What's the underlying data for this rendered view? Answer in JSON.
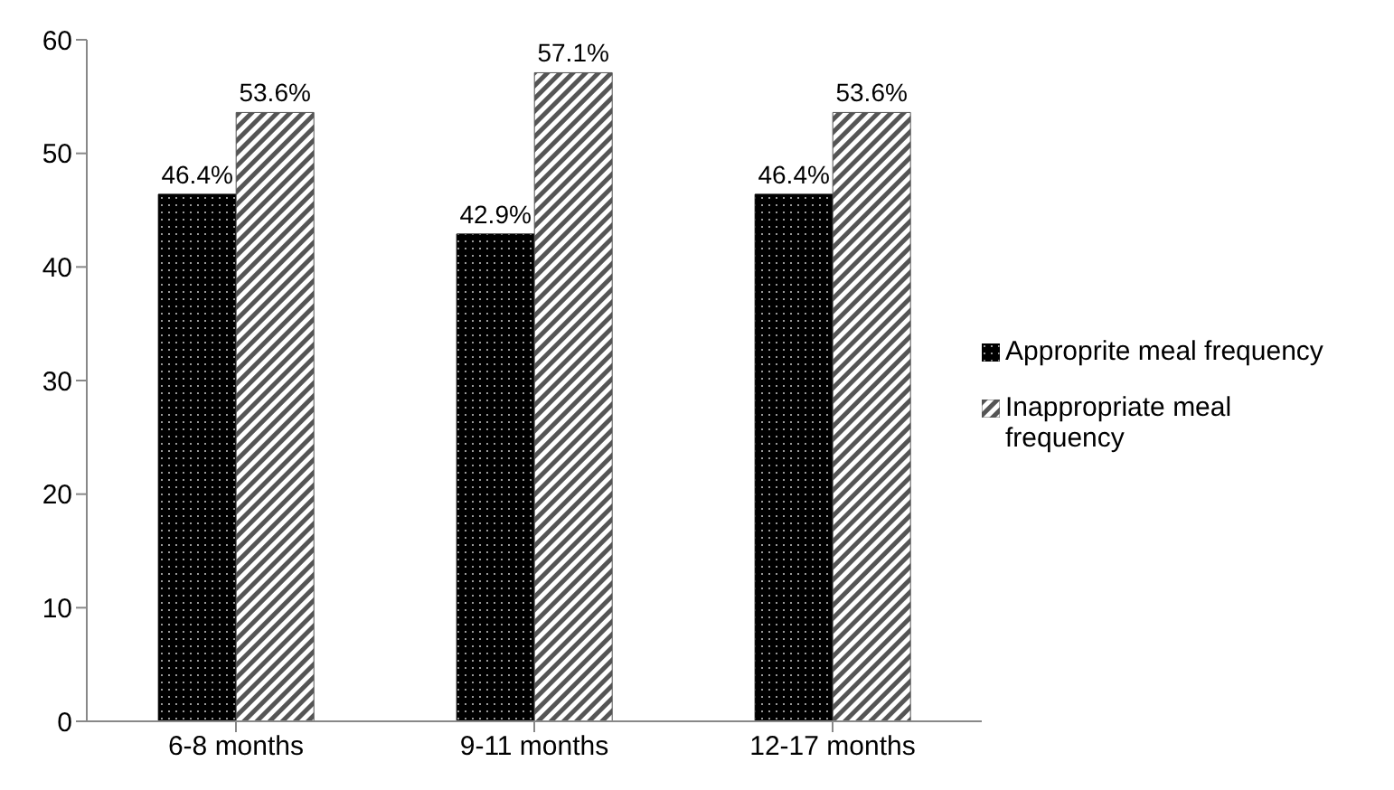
{
  "chart_data": {
    "type": "bar",
    "categories": [
      "6-8 months",
      "9-11 months",
      "12-17 months"
    ],
    "series": [
      {
        "name": "Approprite meal frequency",
        "color": "#000000",
        "values": [
          46.4,
          42.9,
          46.4
        ],
        "value_labels": [
          "46.4%",
          "42.9%",
          "46.4%"
        ]
      },
      {
        "name": "Inappropriate meal frequency",
        "color": "#555555",
        "values": [
          53.6,
          57.1,
          53.6
        ],
        "value_labels": [
          "53.6%",
          "57.1%",
          "53.6%"
        ]
      }
    ],
    "ylim": [
      0,
      60
    ],
    "yticks": [
      0,
      10,
      20,
      30,
      40,
      50,
      60
    ],
    "grid": false,
    "legend": "right"
  }
}
